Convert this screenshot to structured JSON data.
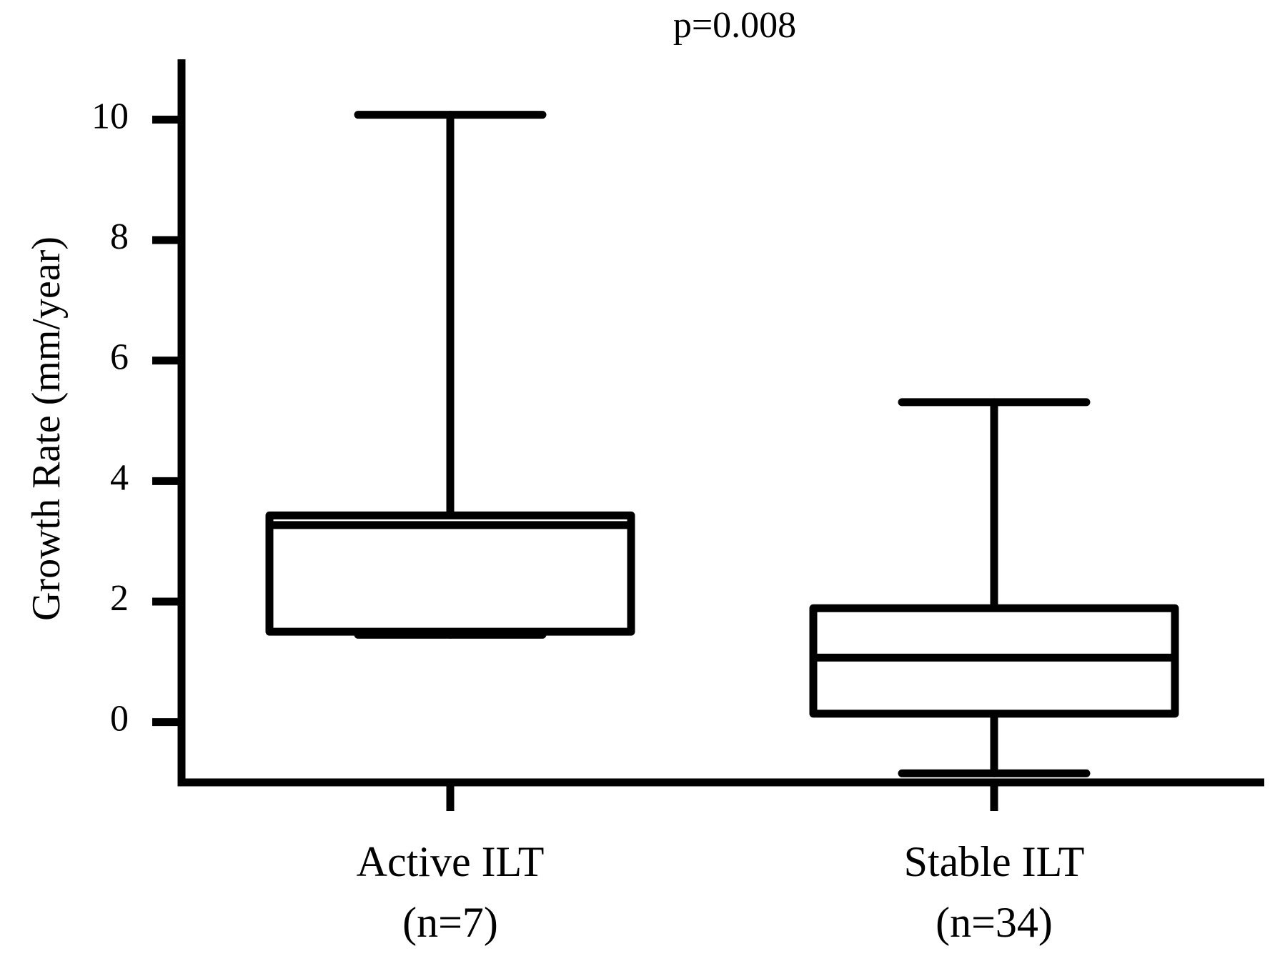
{
  "chart_data": {
    "type": "box",
    "title": "p=0.008",
    "y_label": "Growth Rate (mm/year)",
    "categories": [
      "Active ILT",
      "Stable ILT"
    ],
    "category_notes": [
      "(n=7)",
      "(n=34)"
    ],
    "boxes": [
      {
        "min": 1.45,
        "q1": 1.5,
        "median": 3.27,
        "q3": 3.43,
        "max": 10.08
      },
      {
        "min": -0.85,
        "q1": 0.14,
        "median": 1.07,
        "q3": 1.89,
        "max": 5.31
      }
    ],
    "color": "#000000",
    "ylim": [
      -1,
      11
    ],
    "yticks": [
      0,
      2,
      4,
      6,
      8,
      10
    ]
  }
}
